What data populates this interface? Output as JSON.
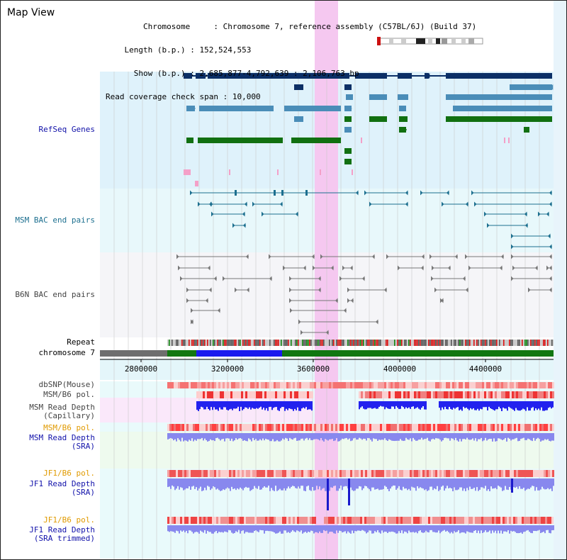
{
  "title": "Map View",
  "info": {
    "chromosome_key": "Chromosome",
    "chromosome_val": "Chromosome 7, reference assembly (C57BL/6J) (Build 37)",
    "length_key": "Length (b.p.)",
    "length_val": "152,524,553",
    "show_key": "Show (b.p.)",
    "show_val": "2,685,877-4,792,639 : 2,106,763 bp",
    "span_key": "Read coverage check span",
    "span_val": "10,000"
  },
  "axis": {
    "ticks": [
      "2800000",
      "3200000",
      "3600000",
      "4000000",
      "4400000"
    ]
  },
  "tracks": {
    "refseq": "RefSeq Genes",
    "msm_bac": "MSM BAC end pairs",
    "b6n_bac": "B6N BAC end pairs",
    "repeat": "Repeat",
    "chromosome": "chromosome 7",
    "dbsnp": "dbSNP(Mouse)",
    "msm_b6_pol_1": "MSM/B6 pol.",
    "msm_depth_cap_1": "MSM Read Depth",
    "msm_depth_cap_2": "(Capillary)",
    "msm_b6_pol_2": "MSM/B6 pol.",
    "msm_depth_sra_1": "MSM Read Depth",
    "msm_depth_sra_2": "(SRA)",
    "jf1_b6_pol_1": "JF1/B6 pol.",
    "jf1_depth_sra_1": "JF1 Read Depth",
    "jf1_depth_sra_2": "(SRA)",
    "jf1_b6_pol_2": "JF1/B6 pol.",
    "jf1_depth_trim_1": "JF1 Read Depth",
    "jf1_depth_trim_2": "(SRA trimmed)"
  },
  "colors": {
    "refseq_bg": "#dff2fb",
    "bac_bg": "#e8f8fb",
    "b6n_bg": "#f5f5f8",
    "highlight": "#f5c8f0",
    "navy": "#0b2f66",
    "steel": "#4a8db8",
    "green": "#117011",
    "pink": "#f4a0c8",
    "teal": "#1c6f8f",
    "gray": "#777777",
    "depth_blue": "#2222ee",
    "depth_light": "#8888ee",
    "chrom_green": "#117711",
    "chrom_blue": "#1a1aee",
    "chrom_gray": "#6e6e6e"
  }
}
